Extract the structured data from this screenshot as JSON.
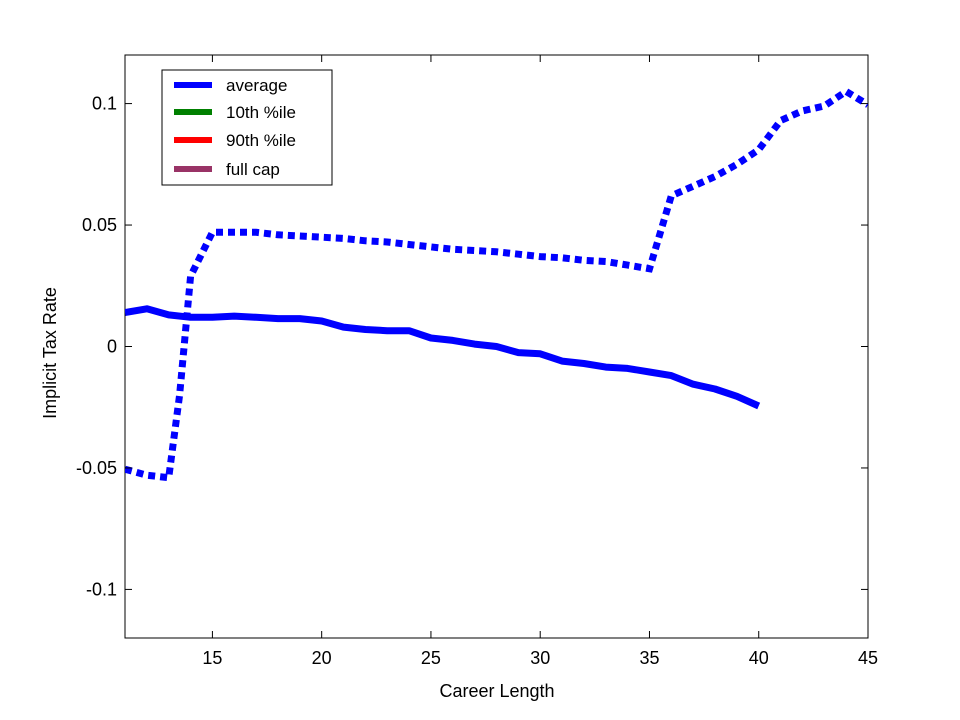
{
  "chart_data": {
    "type": "line",
    "xlabel": "Career Length",
    "ylabel": "Implicit Tax Rate",
    "xlim": [
      11,
      45
    ],
    "ylim": [
      -0.12,
      0.12
    ],
    "xticks": [
      15,
      20,
      25,
      30,
      35,
      40,
      45
    ],
    "xtick_labels": [
      "15",
      "20",
      "25",
      "30",
      "35",
      "40",
      "45"
    ],
    "yticks": [
      -0.1,
      -0.05,
      0,
      0.05,
      0.1
    ],
    "ytick_labels": [
      "-0.1",
      "-0.05",
      "0",
      "0.05",
      "0.1"
    ],
    "grid": false,
    "legend_position": "top-left",
    "legend": [
      {
        "label": "average",
        "color": "#0000ff"
      },
      {
        "label": "10th %ile",
        "color": "#008000"
      },
      {
        "label": "90th %ile",
        "color": "#ff0000"
      },
      {
        "label": "full cap",
        "color": "#993366"
      }
    ],
    "series": [
      {
        "style": "solid",
        "color": "#0000ff",
        "x": [
          11,
          12,
          13,
          14,
          15,
          16,
          17,
          18,
          19,
          20,
          21,
          22,
          23,
          24,
          25,
          26,
          27,
          28,
          29,
          30,
          31,
          32,
          33,
          34,
          35,
          36,
          37,
          38,
          39,
          40
        ],
        "y": [
          0.014,
          0.0155,
          0.013,
          0.012,
          0.012,
          0.0125,
          0.012,
          0.0115,
          0.0115,
          0.0105,
          0.008,
          0.007,
          0.0065,
          0.0065,
          0.0035,
          0.0025,
          0.001,
          0.0,
          -0.0025,
          -0.003,
          -0.006,
          -0.007,
          -0.0085,
          -0.009,
          -0.0105,
          -0.012,
          -0.0155,
          -0.0175,
          -0.0205,
          -0.0245
        ]
      },
      {
        "style": "dotted",
        "color": "#0000ff",
        "x": [
          11,
          12,
          13,
          13.5,
          14,
          15,
          16,
          17,
          18,
          19,
          20,
          21,
          22,
          23,
          24,
          25,
          26,
          27,
          28,
          29,
          30,
          31,
          32,
          33,
          34,
          35,
          36,
          37,
          38,
          39,
          40,
          41,
          42,
          43,
          44,
          45
        ],
        "y": [
          -0.0505,
          -0.053,
          -0.054,
          -0.02,
          0.029,
          0.047,
          0.047,
          0.047,
          0.046,
          0.0455,
          0.045,
          0.0445,
          0.0435,
          0.043,
          0.042,
          0.041,
          0.04,
          0.0395,
          0.039,
          0.038,
          0.037,
          0.0365,
          0.0355,
          0.035,
          0.0335,
          0.032,
          0.062,
          0.066,
          0.07,
          0.075,
          0.081,
          0.093,
          0.097,
          0.099,
          0.105,
          0.0995
        ]
      }
    ]
  }
}
